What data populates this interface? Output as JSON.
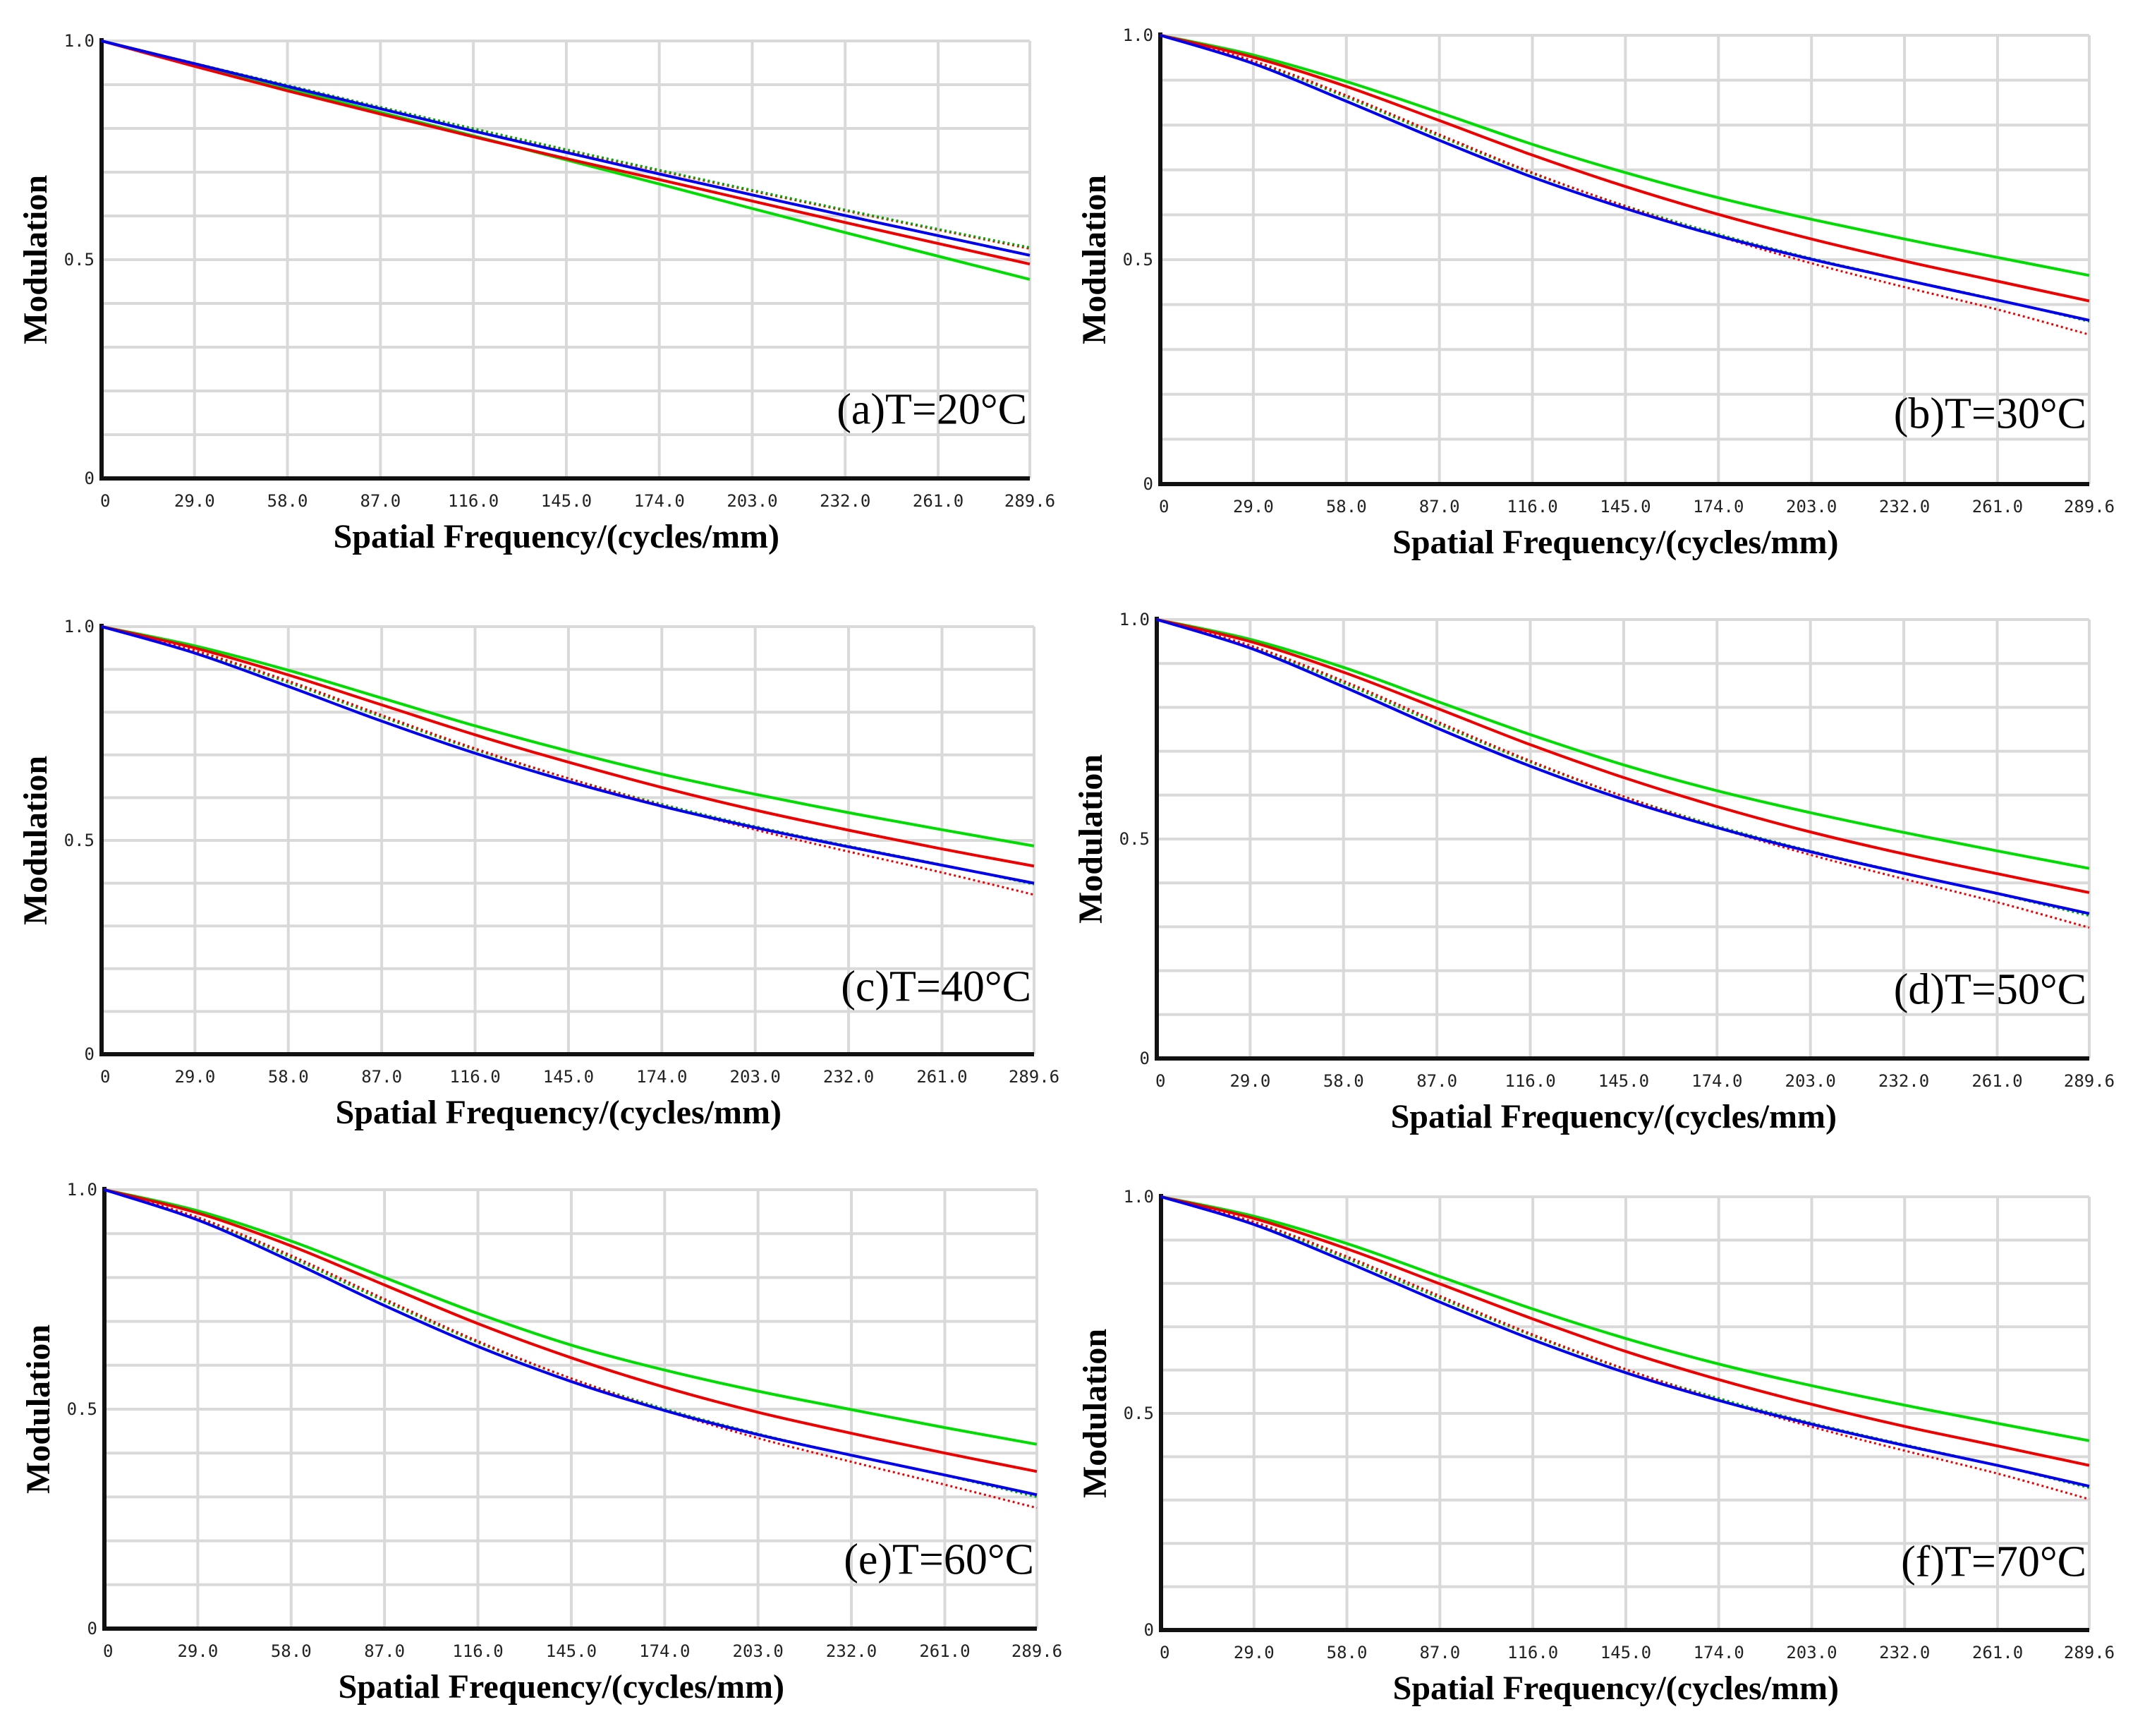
{
  "chart_data": [
    {
      "type": "line",
      "label": "(a)T=20°C",
      "xlabel": "Spatial Frequency/(cycles/mm)",
      "ylabel": "Modulation",
      "xlim": [
        0,
        289.6
      ],
      "ylim": [
        0,
        1.0
      ],
      "xticks": [
        "0",
        "29.0",
        "58.0",
        "87.0",
        "116.0",
        "145.0",
        "174.0",
        "203.0",
        "232.0",
        "261.0",
        "289.6"
      ],
      "yticks": [
        "0",
        "0.5",
        "1.0"
      ],
      "grid": true,
      "x": [
        0,
        29,
        58,
        87,
        116,
        145,
        174,
        203,
        232,
        261,
        289.6
      ],
      "series": [
        {
          "name": "green",
          "color": "#00dd00",
          "style": "solid",
          "values": [
            1.0,
            0.945,
            0.891,
            0.837,
            0.783,
            0.728,
            0.673,
            0.617,
            0.562,
            0.508,
            0.455
          ]
        },
        {
          "name": "red",
          "color": "#ee0000",
          "style": "solid",
          "values": [
            1.0,
            0.942,
            0.886,
            0.833,
            0.781,
            0.731,
            0.683,
            0.634,
            0.585,
            0.537,
            0.49
          ]
        },
        {
          "name": "blue",
          "color": "#0000ee",
          "style": "solid",
          "values": [
            1.0,
            0.948,
            0.896,
            0.845,
            0.794,
            0.745,
            0.696,
            0.648,
            0.601,
            0.555,
            0.51
          ]
        },
        {
          "name": "red-dotted",
          "color": "#ee0000",
          "style": "dotted",
          "values": [
            1.0,
            0.949,
            0.898,
            0.848,
            0.798,
            0.75,
            0.703,
            0.657,
            0.612,
            0.568,
            0.525
          ]
        },
        {
          "name": "green-dotted",
          "color": "#00aa00",
          "style": "dotted",
          "values": [
            1.0,
            0.949,
            0.899,
            0.849,
            0.8,
            0.752,
            0.705,
            0.659,
            0.614,
            0.57,
            0.528
          ]
        }
      ]
    },
    {
      "type": "line",
      "label": "(b)T=30°C",
      "xlabel": "Spatial Frequency/(cycles/mm)",
      "ylabel": "Modulation",
      "xlim": [
        0,
        289.6
      ],
      "ylim": [
        0,
        1.0
      ],
      "xticks": [
        "0",
        "29.0",
        "58.0",
        "87.0",
        "116.0",
        "145.0",
        "174.0",
        "203.0",
        "232.0",
        "261.0",
        "289.6"
      ],
      "yticks": [
        "0",
        "0.5",
        "1.0"
      ],
      "grid": true,
      "x": [
        0,
        29,
        58,
        87,
        116,
        145,
        174,
        203,
        232,
        261,
        289.6
      ],
      "series": [
        {
          "name": "green",
          "color": "#00dd00",
          "style": "solid",
          "values": [
            1.0,
            0.956,
            0.897,
            0.828,
            0.757,
            0.694,
            0.638,
            0.59,
            0.546,
            0.505,
            0.465
          ]
        },
        {
          "name": "red",
          "color": "#ee0000",
          "style": "solid",
          "values": [
            1.0,
            0.951,
            0.886,
            0.81,
            0.733,
            0.663,
            0.601,
            0.546,
            0.497,
            0.452,
            0.408
          ]
        },
        {
          "name": "blue",
          "color": "#0000ee",
          "style": "solid",
          "values": [
            1.0,
            0.937,
            0.853,
            0.766,
            0.684,
            0.614,
            0.553,
            0.501,
            0.455,
            0.41,
            0.365
          ]
        },
        {
          "name": "green-dotted",
          "color": "#00aa00",
          "style": "dotted",
          "values": [
            1.0,
            0.941,
            0.862,
            0.775,
            0.692,
            0.62,
            0.557,
            0.503,
            0.456,
            0.411,
            0.362
          ]
        },
        {
          "name": "red-dotted",
          "color": "#ee0000",
          "style": "dotted",
          "values": [
            1.0,
            0.943,
            0.866,
            0.779,
            0.694,
            0.619,
            0.552,
            0.492,
            0.439,
            0.389,
            0.333
          ]
        }
      ]
    },
    {
      "type": "line",
      "label": "(c)T=40°C",
      "xlabel": "Spatial Frequency/(cycles/mm)",
      "ylabel": "Modulation",
      "xlim": [
        0,
        289.6
      ],
      "ylim": [
        0,
        1.0
      ],
      "xticks": [
        "0",
        "29.0",
        "58.0",
        "87.0",
        "116.0",
        "145.0",
        "174.0",
        "203.0",
        "232.0",
        "261.0",
        "289.6"
      ],
      "yticks": [
        "0",
        "0.5",
        "1.0"
      ],
      "grid": true,
      "x": [
        0,
        29,
        58,
        87,
        116,
        145,
        174,
        203,
        232,
        261,
        289.6
      ],
      "series": [
        {
          "name": "green",
          "color": "#00dd00",
          "style": "solid",
          "values": [
            1.0,
            0.955,
            0.898,
            0.833,
            0.768,
            0.709,
            0.655,
            0.608,
            0.565,
            0.525,
            0.487
          ]
        },
        {
          "name": "red",
          "color": "#ee0000",
          "style": "solid",
          "values": [
            1.0,
            0.95,
            0.887,
            0.817,
            0.747,
            0.683,
            0.624,
            0.571,
            0.524,
            0.48,
            0.44
          ]
        },
        {
          "name": "blue",
          "color": "#0000ee",
          "style": "solid",
          "values": [
            1.0,
            0.938,
            0.86,
            0.779,
            0.704,
            0.638,
            0.58,
            0.53,
            0.485,
            0.442,
            0.4
          ]
        },
        {
          "name": "green-dotted",
          "color": "#00aa00",
          "style": "dotted",
          "values": [
            1.0,
            0.942,
            0.869,
            0.789,
            0.712,
            0.645,
            0.585,
            0.533,
            0.487,
            0.443,
            0.397
          ]
        },
        {
          "name": "red-dotted",
          "color": "#ee0000",
          "style": "dotted",
          "values": [
            1.0,
            0.944,
            0.873,
            0.793,
            0.715,
            0.645,
            0.582,
            0.525,
            0.474,
            0.425,
            0.373
          ]
        }
      ]
    },
    {
      "type": "line",
      "label": "(d)T=50°C",
      "xlabel": "Spatial Frequency/(cycles/mm)",
      "ylabel": "Modulation",
      "xlim": [
        0,
        289.6
      ],
      "ylim": [
        0,
        1.0
      ],
      "xticks": [
        "0",
        "29.0",
        "58.0",
        "87.0",
        "116.0",
        "145.0",
        "174.0",
        "203.0",
        "232.0",
        "261.0",
        "289.6"
      ],
      "yticks": [
        "0",
        "0.5",
        "1.0"
      ],
      "grid": true,
      "x": [
        0,
        29,
        58,
        87,
        116,
        145,
        174,
        203,
        232,
        261,
        289.6
      ],
      "series": [
        {
          "name": "green",
          "color": "#00dd00",
          "style": "solid",
          "values": [
            1.0,
            0.955,
            0.891,
            0.814,
            0.738,
            0.669,
            0.61,
            0.56,
            0.515,
            0.473,
            0.433
          ]
        },
        {
          "name": "red",
          "color": "#ee0000",
          "style": "solid",
          "values": [
            1.0,
            0.95,
            0.88,
            0.798,
            0.715,
            0.64,
            0.574,
            0.516,
            0.466,
            0.421,
            0.378
          ]
        },
        {
          "name": "blue",
          "color": "#0000ee",
          "style": "solid",
          "values": [
            1.0,
            0.935,
            0.847,
            0.753,
            0.666,
            0.59,
            0.526,
            0.471,
            0.422,
            0.376,
            0.33
          ]
        },
        {
          "name": "green-dotted",
          "color": "#00aa00",
          "style": "dotted",
          "values": [
            1.0,
            0.939,
            0.855,
            0.763,
            0.675,
            0.597,
            0.53,
            0.473,
            0.423,
            0.375,
            0.325
          ]
        },
        {
          "name": "red-dotted",
          "color": "#ee0000",
          "style": "dotted",
          "values": [
            1.0,
            0.941,
            0.86,
            0.768,
            0.678,
            0.597,
            0.526,
            0.464,
            0.409,
            0.356,
            0.298
          ]
        }
      ]
    },
    {
      "type": "line",
      "label": "(e)T=60°C",
      "xlabel": "Spatial Frequency/(cycles/mm)",
      "ylabel": "Modulation",
      "xlim": [
        0,
        289.6
      ],
      "ylim": [
        0,
        1.0
      ],
      "xticks": [
        "0",
        "29.0",
        "58.0",
        "87.0",
        "116.0",
        "145.0",
        "174.0",
        "203.0",
        "232.0",
        "261.0",
        "289.6"
      ],
      "yticks": [
        "0",
        "0.5",
        "1.0"
      ],
      "grid": true,
      "x": [
        0,
        29,
        58,
        87,
        116,
        145,
        174,
        203,
        232,
        261,
        289.6
      ],
      "series": [
        {
          "name": "green",
          "color": "#00dd00",
          "style": "solid",
          "values": [
            1.0,
            0.952,
            0.883,
            0.8,
            0.718,
            0.646,
            0.589,
            0.541,
            0.499,
            0.458,
            0.42
          ]
        },
        {
          "name": "red",
          "color": "#ee0000",
          "style": "solid",
          "values": [
            1.0,
            0.947,
            0.872,
            0.783,
            0.695,
            0.617,
            0.55,
            0.493,
            0.445,
            0.4,
            0.358
          ]
        },
        {
          "name": "blue",
          "color": "#0000ee",
          "style": "solid",
          "values": [
            1.0,
            0.931,
            0.837,
            0.736,
            0.643,
            0.563,
            0.497,
            0.442,
            0.395,
            0.35,
            0.305
          ]
        },
        {
          "name": "green-dotted",
          "color": "#00aa00",
          "style": "dotted",
          "values": [
            1.0,
            0.935,
            0.845,
            0.746,
            0.652,
            0.57,
            0.501,
            0.444,
            0.395,
            0.349,
            0.3
          ]
        },
        {
          "name": "red-dotted",
          "color": "#ee0000",
          "style": "dotted",
          "values": [
            1.0,
            0.937,
            0.85,
            0.751,
            0.655,
            0.57,
            0.497,
            0.434,
            0.38,
            0.328,
            0.275
          ]
        }
      ]
    },
    {
      "type": "line",
      "label": "(f)T=70°C",
      "xlabel": "Spatial Frequency/(cycles/mm)",
      "ylabel": "Modulation",
      "xlim": [
        0,
        289.6
      ],
      "ylim": [
        0,
        1.0
      ],
      "xticks": [
        "0",
        "29.0",
        "58.0",
        "87.0",
        "116.0",
        "145.0",
        "174.0",
        "203.0",
        "232.0",
        "261.0",
        "289.6"
      ],
      "yticks": [
        "0",
        "0.5",
        "1.0"
      ],
      "grid": true,
      "x": [
        0,
        29,
        58,
        87,
        116,
        145,
        174,
        203,
        232,
        261,
        289.6
      ],
      "series": [
        {
          "name": "green",
          "color": "#00dd00",
          "style": "solid",
          "values": [
            1.0,
            0.955,
            0.892,
            0.816,
            0.741,
            0.673,
            0.614,
            0.564,
            0.519,
            0.477,
            0.437
          ]
        },
        {
          "name": "red",
          "color": "#ee0000",
          "style": "solid",
          "values": [
            1.0,
            0.95,
            0.88,
            0.799,
            0.718,
            0.643,
            0.578,
            0.521,
            0.47,
            0.425,
            0.38
          ]
        },
        {
          "name": "blue",
          "color": "#0000ee",
          "style": "solid",
          "values": [
            1.0,
            0.936,
            0.849,
            0.757,
            0.67,
            0.594,
            0.53,
            0.475,
            0.426,
            0.38,
            0.332
          ]
        },
        {
          "name": "green-dotted",
          "color": "#00aa00",
          "style": "dotted",
          "values": [
            1.0,
            0.94,
            0.857,
            0.766,
            0.679,
            0.601,
            0.535,
            0.478,
            0.428,
            0.38,
            0.328
          ]
        },
        {
          "name": "red-dotted",
          "color": "#ee0000",
          "style": "dotted",
          "values": [
            1.0,
            0.942,
            0.862,
            0.771,
            0.682,
            0.602,
            0.531,
            0.469,
            0.414,
            0.361,
            0.302
          ]
        }
      ]
    }
  ]
}
